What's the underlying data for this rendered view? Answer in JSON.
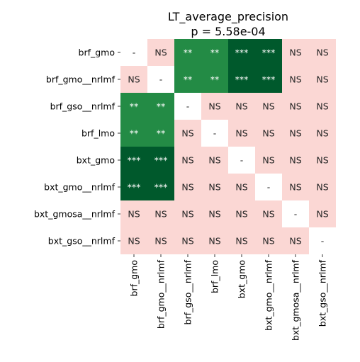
{
  "chart_data": {
    "type": "heatmap",
    "title": "LT_average_precision",
    "subtitle": "p = 5.58e-04",
    "row_labels": [
      "brf_gmo",
      "brf_gmo__nrlmf",
      "brf_gso__nrlmf",
      "brf_lmo",
      "bxt_gmo",
      "bxt_gmo__nrlmf",
      "bxt_gmosa__nrlmf",
      "bxt_gso__nrlmf"
    ],
    "col_labels": [
      "brf_gmo",
      "brf_gmo__nrlmf",
      "brf_gso__nrlmf",
      "brf_lmo",
      "bxt_gmo",
      "bxt_gmo__nrlmf",
      "bxt_gmosa__nrlmf",
      "bxt_gso__nrlmf"
    ],
    "cells": [
      [
        "-",
        "NS",
        "**",
        "**",
        "***",
        "***",
        "NS",
        "NS"
      ],
      [
        "NS",
        "-",
        "**",
        "**",
        "***",
        "***",
        "NS",
        "NS"
      ],
      [
        "**",
        "**",
        "-",
        "NS",
        "NS",
        "NS",
        "NS",
        "NS"
      ],
      [
        "**",
        "**",
        "NS",
        "-",
        "NS",
        "NS",
        "NS",
        "NS"
      ],
      [
        "***",
        "***",
        "NS",
        "NS",
        "-",
        "NS",
        "NS",
        "NS"
      ],
      [
        "***",
        "***",
        "NS",
        "NS",
        "NS",
        "-",
        "NS",
        "NS"
      ],
      [
        "NS",
        "NS",
        "NS",
        "NS",
        "NS",
        "NS",
        "-",
        "NS"
      ],
      [
        "NS",
        "NS",
        "NS",
        "NS",
        "NS",
        "NS",
        "NS",
        "-"
      ]
    ],
    "colors": {
      "NS": "#fbd7d4",
      "**": "#238b45",
      "***": "#00592c",
      "-": "#ffffff",
      "text_dark": "#262626",
      "text_light": "#ffffff"
    }
  }
}
